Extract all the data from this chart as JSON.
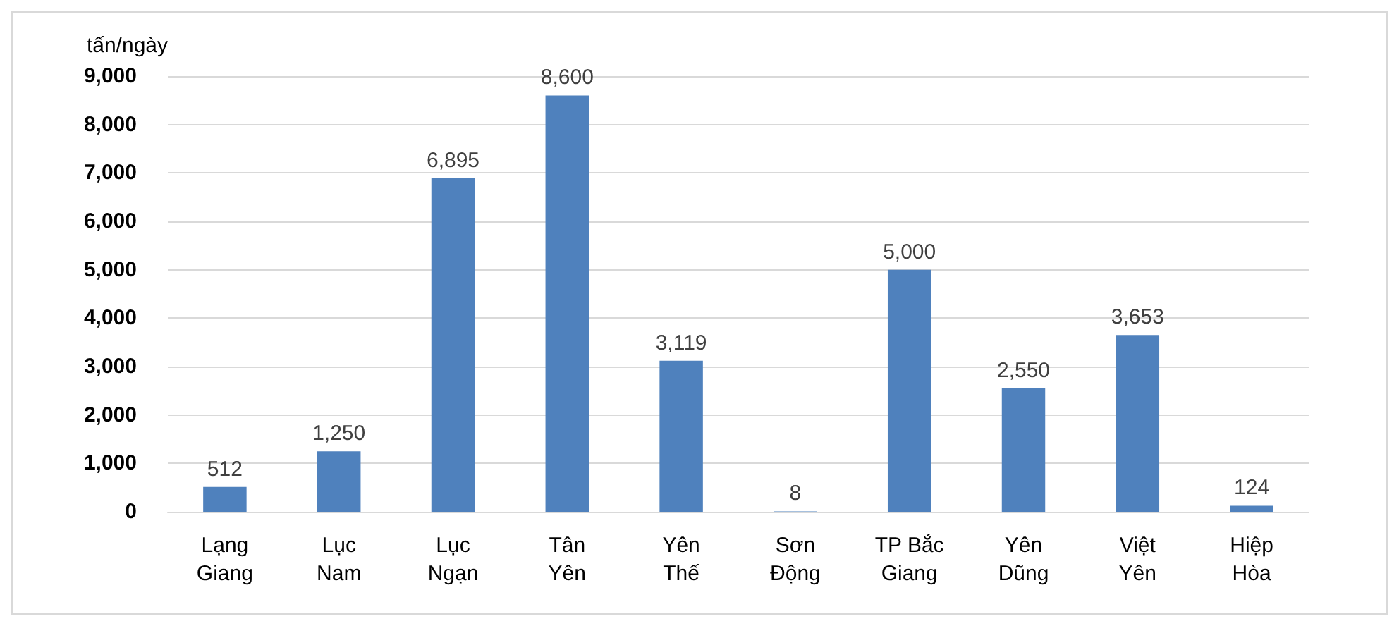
{
  "chart_data": {
    "type": "bar",
    "ylabel": "tấn/ngày",
    "categories": [
      "Lạng Giang",
      "Lục Nam",
      "Lục Ngạn",
      "Tân Yên",
      "Yên Thế",
      "Sơn Động",
      "TP Bắc Giang",
      "Yên Dũng",
      "Việt Yên",
      "Hiệp Hòa"
    ],
    "values": [
      512,
      1250,
      6895,
      8600,
      3119,
      8,
      5000,
      2550,
      3653,
      124
    ],
    "value_labels": [
      "512",
      "1,250",
      "6,895",
      "8,600",
      "3,119",
      "8",
      "5,000",
      "2,550",
      "3,653",
      "124"
    ],
    "color": "#4f81bd",
    "ylim": [
      0,
      9000
    ],
    "yticks": [
      0,
      {
        "value": 1000,
        "label": "1,000"
      },
      {
        "value": 2000,
        "label": "2,000"
      },
      {
        "value": 3000,
        "label": "3,000"
      },
      {
        "value": 4000,
        "label": "4,000"
      },
      {
        "value": 5000,
        "label": "5,000"
      },
      {
        "value": 6000,
        "label": "6,000"
      },
      {
        "value": 7000,
        "label": "7,000"
      },
      {
        "value": 8000,
        "label": "8,000"
      },
      {
        "value": 9000,
        "label": "9,000"
      }
    ],
    "grid": "y"
  }
}
